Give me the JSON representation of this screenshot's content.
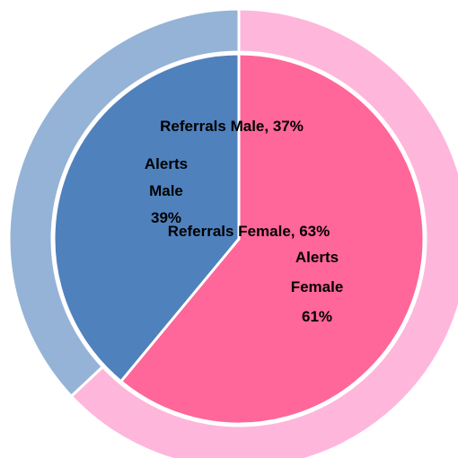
{
  "chart_data": {
    "type": "nested-pie",
    "categories": [
      "Female",
      "Male"
    ],
    "series": [
      {
        "name": "Alerts",
        "ring": "inner",
        "colors": [
          "#ff6699",
          "#4f81bd"
        ],
        "values": [
          61,
          39
        ],
        "value_labels": [
          [
            "Alerts",
            "Female",
            "61%"
          ],
          [
            "Alerts",
            "Male",
            "39%"
          ]
        ]
      },
      {
        "name": "Referrals",
        "ring": "outer",
        "colors": [
          "#ffb6db",
          "#95b3d7"
        ],
        "values": [
          63,
          37
        ],
        "value_labels": [
          [
            "Referrals Female, 63%"
          ],
          [
            "Referrals Male, 37%"
          ]
        ]
      }
    ]
  }
}
